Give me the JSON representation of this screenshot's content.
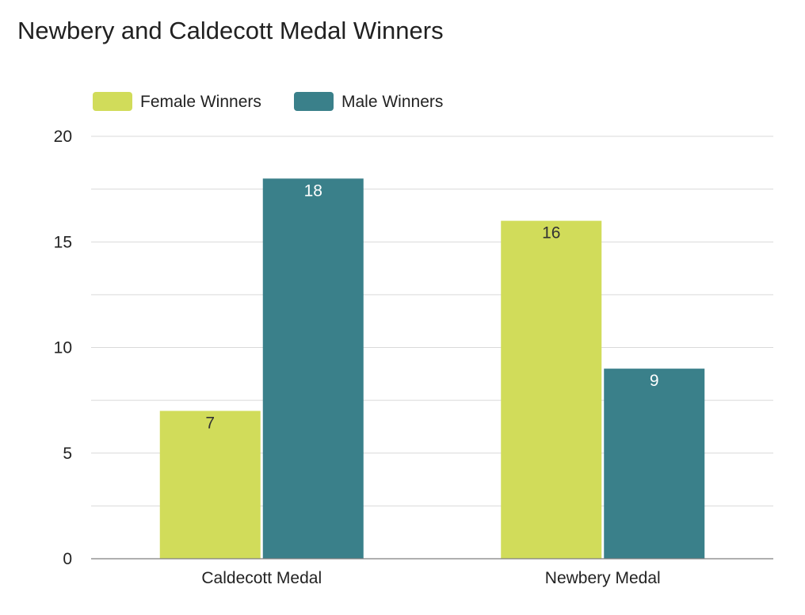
{
  "chart_data": {
    "type": "bar",
    "title": "Newbery and Caldecott Medal Winners",
    "categories": [
      "Caldecott Medal",
      "Newbery Medal"
    ],
    "series": [
      {
        "name": "Female Winners",
        "values": [
          7,
          16
        ],
        "color": "#d1dc5a",
        "label_color": "#333333"
      },
      {
        "name": "Male Winners",
        "values": [
          18,
          9
        ],
        "color": "#3a808a",
        "label_color": "#ffffff"
      }
    ],
    "ylim": [
      0,
      20
    ],
    "y_ticks": [
      "0",
      "5",
      "10",
      "15",
      "20"
    ],
    "y_minor_step": 2.5,
    "grid": true,
    "legend_position": "top-left",
    "xlabel": "",
    "ylabel": ""
  }
}
